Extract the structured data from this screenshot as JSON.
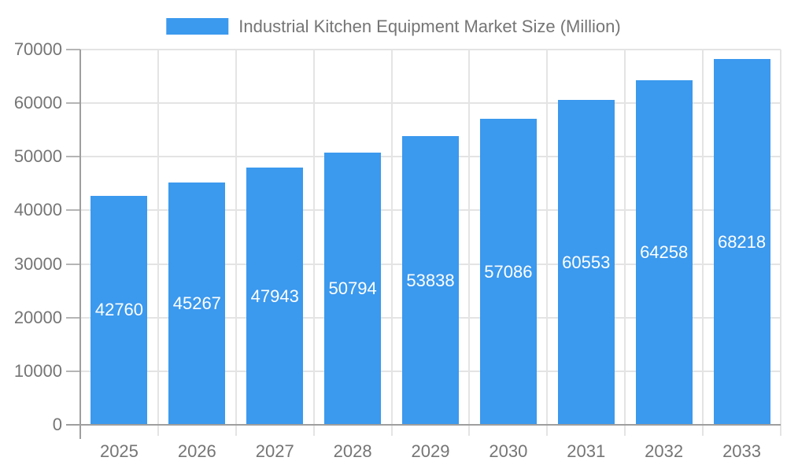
{
  "chart_data": {
    "type": "bar",
    "title": "Industrial Kitchen Equipment Market Size (Million)",
    "legend": [
      "Industrial Kitchen Equipment Market Size (Million)"
    ],
    "legend_position": "top-center",
    "categories": [
      "2025",
      "2026",
      "2027",
      "2028",
      "2029",
      "2030",
      "2031",
      "2032",
      "2033"
    ],
    "series": [
      {
        "name": "Industrial Kitchen Equipment Market Size (Million)",
        "values": [
          42760,
          45267,
          47943,
          50794,
          53838,
          57086,
          60553,
          64258,
          68218
        ]
      }
    ],
    "value_labels": {
      "position": "inside-center",
      "color": "#ffffff"
    },
    "xlabel": "",
    "ylabel": "",
    "ylim": [
      0,
      70000
    ],
    "ytick_interval": 10000,
    "yticks": [
      0,
      10000,
      20000,
      30000,
      40000,
      50000,
      60000,
      70000
    ],
    "grid": true,
    "colors": {
      "bar": "#3b99ee",
      "axis": "#9e9e9e",
      "gridline": "#e4e4e4",
      "y_tick_mark": "#b5b5b5",
      "tick_text": "#757575",
      "legend_text": "#757575",
      "value_label": "#ffffff",
      "background": "#ffffff"
    }
  }
}
